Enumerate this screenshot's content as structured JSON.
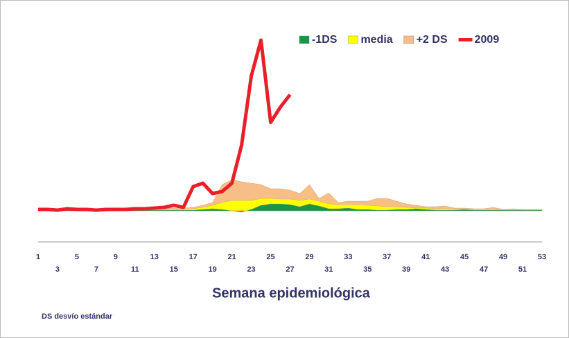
{
  "chart_data": {
    "type": "area-line",
    "xlabel": "Semana epidemiológica",
    "note": "DS desvío estándar",
    "x": [
      1,
      2,
      3,
      4,
      5,
      6,
      7,
      8,
      9,
      10,
      11,
      12,
      13,
      14,
      15,
      16,
      17,
      18,
      19,
      20,
      21,
      22,
      23,
      24,
      25,
      26,
      27,
      28,
      29,
      30,
      31,
      32,
      33,
      34,
      35,
      36,
      37,
      38,
      39,
      40,
      41,
      42,
      43,
      44,
      45,
      46,
      47,
      48,
      49,
      50,
      51,
      52,
      53
    ],
    "xlim": [
      1,
      53
    ],
    "xticks": [
      1,
      3,
      5,
      7,
      9,
      11,
      13,
      15,
      17,
      19,
      21,
      23,
      25,
      27,
      29,
      31,
      33,
      35,
      37,
      39,
      41,
      43,
      45,
      47,
      49,
      51,
      53
    ],
    "ylim": [
      0,
      255
    ],
    "legend": "top-right",
    "series": [
      {
        "name": "+2 DS",
        "color": "#f7bf87",
        "kind": "area",
        "values": [
          2,
          2,
          2,
          2,
          2,
          2,
          2,
          2,
          2,
          2,
          3,
          3,
          3,
          4,
          4,
          4,
          5,
          8,
          12,
          38,
          45,
          42,
          40,
          38,
          32,
          32,
          30,
          25,
          38,
          18,
          26,
          12,
          14,
          14,
          14,
          18,
          18,
          14,
          10,
          8,
          6,
          6,
          7,
          4,
          4,
          3,
          3,
          5,
          2,
          3,
          2,
          2,
          2
        ]
      },
      {
        "name": "media",
        "color": "#ffff00",
        "kind": "area",
        "values": [
          1,
          1,
          1,
          1,
          1,
          1,
          1,
          1,
          1,
          1,
          2,
          2,
          2,
          2,
          2,
          2,
          3,
          5,
          8,
          12,
          15,
          15,
          15,
          18,
          18,
          17,
          17,
          15,
          17,
          14,
          10,
          9,
          9,
          9,
          8,
          7,
          6,
          6,
          5,
          4,
          4,
          3,
          3,
          2,
          3,
          2,
          2,
          2,
          1,
          2,
          1,
          1,
          1
        ]
      },
      {
        "name": "-1DS",
        "color": "#169646",
        "kind": "area",
        "values": [
          1,
          1,
          1,
          1,
          1,
          1,
          1,
          1,
          1,
          1,
          1,
          1,
          1,
          1,
          1,
          1,
          1,
          2,
          3,
          2,
          0,
          -2,
          2,
          8,
          10,
          10,
          9,
          6,
          10,
          7,
          3,
          3,
          4,
          2,
          2,
          1,
          1,
          2,
          2,
          3,
          2,
          1,
          1,
          1,
          2,
          1,
          1,
          1,
          1,
          1,
          1,
          1,
          1
        ]
      },
      {
        "name": "2009",
        "color": "#e8202a",
        "kind": "line",
        "values": [
          2,
          2,
          1,
          3,
          2,
          2,
          1,
          2,
          2,
          2,
          3,
          3,
          4,
          5,
          8,
          5,
          35,
          40,
          25,
          28,
          40,
          95,
          195,
          247,
          128,
          150,
          168,
          null,
          null,
          null,
          null,
          null,
          null,
          null,
          null,
          null,
          null,
          null,
          null,
          null,
          null,
          null,
          null,
          null,
          null,
          null,
          null,
          null,
          null,
          null,
          null,
          null,
          null
        ]
      }
    ]
  }
}
